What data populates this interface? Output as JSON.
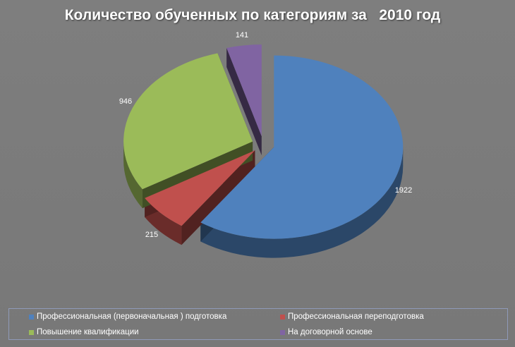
{
  "chart_data": {
    "type": "pie",
    "title": "Количество обученных по категориям за   2010 год",
    "categories": [
      "Профессиональная (первоначальная ) подготовка",
      "Профессиональная переподготовка",
      "Повышение  квалификации",
      "На договорной основе"
    ],
    "values": [
      1922,
      215,
      946,
      141
    ],
    "colors": [
      "#4f81bd",
      "#c0504d",
      "#9bbb59",
      "#8064a2"
    ],
    "legend_position": "bottom",
    "style": "3d-exploded"
  }
}
